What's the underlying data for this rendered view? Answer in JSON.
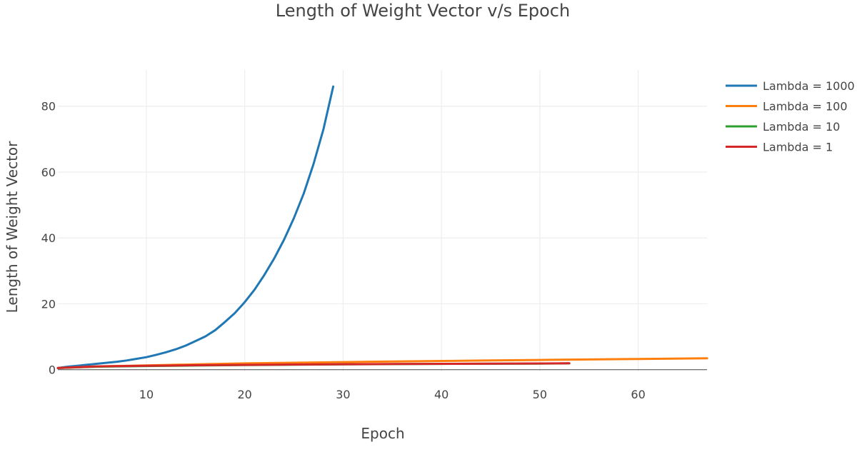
{
  "chart_data": {
    "type": "line",
    "title": "Length of Weight Vector v/s Epoch",
    "xlabel": "Epoch",
    "ylabel": "Length of Weight Vector",
    "xlim": [
      1,
      67
    ],
    "ylim": [
      -0.5,
      91
    ],
    "xticks": [
      10,
      20,
      30,
      40,
      50,
      60
    ],
    "yticks": [
      0,
      20,
      40,
      60,
      80
    ],
    "grid": true,
    "legend_position": "top-right",
    "series": [
      {
        "name": "Lambda = 1000",
        "color": "#1f77b4",
        "x": [
          1,
          2,
          3,
          4,
          5,
          6,
          7,
          8,
          9,
          10,
          11,
          12,
          13,
          14,
          15,
          16,
          17,
          18,
          19,
          20,
          21,
          22,
          23,
          24,
          25,
          26,
          27,
          28,
          29
        ],
        "y": [
          0.5,
          0.9,
          1.2,
          1.5,
          1.8,
          2.1,
          2.4,
          2.8,
          3.3,
          3.8,
          4.5,
          5.3,
          6.2,
          7.3,
          8.7,
          10.1,
          12.0,
          14.5,
          17.2,
          20.5,
          24.3,
          28.8,
          33.8,
          39.5,
          46.0,
          53.5,
          62.5,
          73.0,
          86.0
        ]
      },
      {
        "name": "Lambda = 100",
        "color": "#ff7f0e",
        "x": [
          1,
          5,
          10,
          15,
          20,
          25,
          30,
          35,
          40,
          45,
          50,
          55,
          60,
          67
        ],
        "y": [
          0.5,
          1.0,
          1.3,
          1.6,
          1.9,
          2.1,
          2.3,
          2.5,
          2.65,
          2.8,
          2.95,
          3.1,
          3.25,
          3.45
        ]
      },
      {
        "name": "Lambda = 10",
        "color": "#2ca02c",
        "x": [
          1,
          5,
          10,
          15,
          20,
          25,
          30,
          35,
          40,
          45,
          50,
          53
        ],
        "y": [
          0.5,
          0.9,
          1.1,
          1.25,
          1.4,
          1.5,
          1.6,
          1.7,
          1.75,
          1.8,
          1.85,
          1.9
        ]
      },
      {
        "name": "Lambda = 1",
        "color": "#d62728",
        "x": [
          1,
          5,
          10,
          15,
          20,
          25,
          30,
          35,
          40,
          45,
          50,
          53
        ],
        "y": [
          0.5,
          1.0,
          1.2,
          1.35,
          1.45,
          1.55,
          1.65,
          1.72,
          1.78,
          1.83,
          1.88,
          1.92
        ]
      }
    ]
  }
}
